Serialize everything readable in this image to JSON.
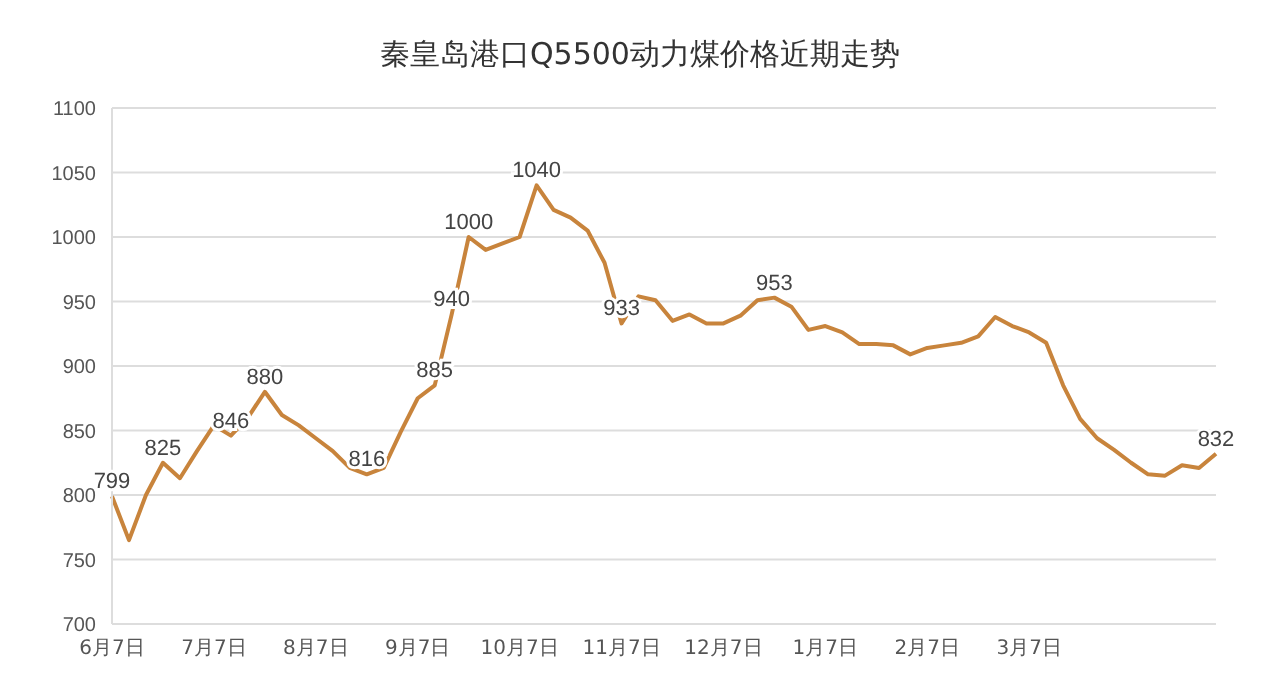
{
  "chart_data": {
    "type": "line",
    "title": "秦皇岛港口Q5500动力煤价格近期走势",
    "categories": [
      "6月7日",
      null,
      null,
      null,
      null,
      null,
      "7月7日",
      null,
      null,
      null,
      null,
      null,
      "8月7日",
      null,
      null,
      null,
      null,
      null,
      "9月7日",
      null,
      null,
      null,
      null,
      null,
      "10月7日",
      null,
      null,
      null,
      null,
      null,
      "11月7日",
      null,
      null,
      null,
      null,
      null,
      "12月7日",
      null,
      null,
      null,
      null,
      null,
      "1月7日",
      null,
      null,
      null,
      null,
      null,
      "2月7日",
      null,
      null,
      null,
      null,
      null,
      "3月7日",
      null,
      null,
      null,
      null,
      null,
      null,
      null,
      null,
      null,
      null,
      null
    ],
    "series": [
      {
        "color": "#c8843c",
        "values": [
          799,
          765,
          800,
          825,
          813,
          834,
          854,
          846,
          860,
          880,
          862,
          854,
          844,
          834,
          821,
          816,
          821,
          849,
          875,
          885,
          940,
          1000,
          990,
          995,
          1000,
          1040,
          1021,
          1015,
          1005,
          980,
          933,
          954,
          951,
          935,
          940,
          933,
          933,
          939,
          951,
          953,
          946,
          928,
          931,
          926,
          917,
          917,
          916,
          909,
          914,
          916,
          918,
          923,
          938,
          931,
          926,
          918,
          885,
          859,
          844,
          835,
          825,
          816,
          815,
          823,
          821,
          832
        ],
        "value_labels": [
          "799",
          null,
          null,
          "825",
          null,
          null,
          null,
          "846",
          null,
          "880",
          null,
          null,
          null,
          null,
          null,
          "816",
          null,
          null,
          null,
          "885",
          "940",
          "1000",
          null,
          null,
          null,
          "1040",
          null,
          null,
          null,
          null,
          "933",
          null,
          null,
          null,
          null,
          null,
          null,
          null,
          null,
          "953",
          null,
          null,
          null,
          null,
          null,
          null,
          null,
          null,
          null,
          null,
          null,
          null,
          null,
          null,
          null,
          null,
          null,
          null,
          null,
          null,
          null,
          null,
          null,
          null,
          null,
          "832"
        ]
      }
    ],
    "ylim": [
      700,
      1100
    ],
    "yticks": [
      700,
      750,
      800,
      850,
      900,
      950,
      1000,
      1050,
      1100
    ],
    "grid": "y",
    "marker": "none",
    "line_style": "solid",
    "legend": false
  }
}
